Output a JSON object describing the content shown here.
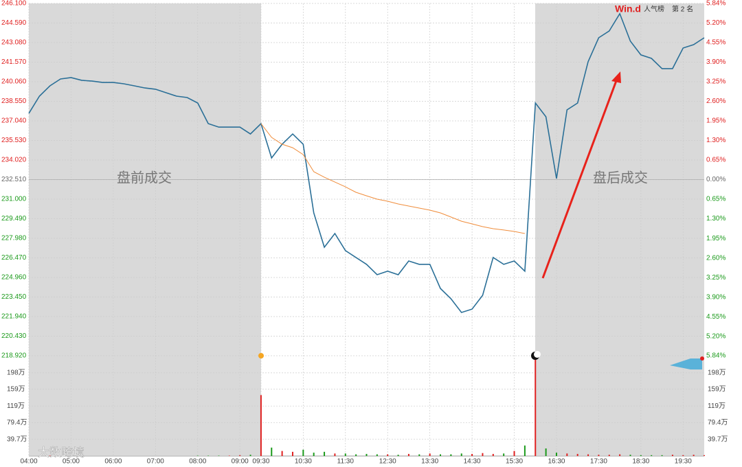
{
  "chart_data": {
    "type": "line",
    "categories": [
      "04:00",
      null,
      null,
      null,
      "05:00",
      null,
      null,
      null,
      "06:00",
      null,
      null,
      null,
      "07:00",
      null,
      null,
      null,
      "08:00",
      null,
      null,
      null,
      "09:00",
      null,
      "09:30",
      null,
      null,
      null,
      "10:30",
      null,
      null,
      null,
      "11:30",
      null,
      null,
      null,
      "12:30",
      null,
      null,
      null,
      "13:30",
      null,
      null,
      null,
      "14:30",
      null,
      null,
      null,
      "15:30",
      null,
      null,
      null,
      "16:30",
      null,
      null,
      null,
      "17:30",
      null,
      null,
      null,
      "18:30",
      null,
      null,
      null,
      "19:30",
      null,
      null
    ],
    "series": [
      {
        "color": "#2a6f97",
        "values": [
          237.62,
          238.95,
          239.74,
          240.27,
          240.38,
          240.17,
          240.11,
          240.0,
          240.0,
          239.9,
          239.74,
          239.58,
          239.48,
          239.21,
          238.95,
          238.84,
          238.42,
          236.83,
          236.56,
          236.56,
          236.56,
          236.03,
          236.83,
          234.18,
          235.24,
          236.03,
          235.24,
          229.94,
          227.29,
          228.35,
          227.03,
          226.5,
          225.97,
          225.17,
          225.44,
          225.17,
          226.23,
          225.97,
          225.97,
          224.11,
          223.32,
          222.26,
          222.52,
          223.58,
          226.5,
          225.97,
          226.23,
          225.44,
          238.42,
          237.36,
          232.59,
          237.89,
          238.42,
          241.6,
          243.45,
          243.98,
          245.31,
          243.19,
          242.13,
          241.86,
          241.07,
          241.07,
          242.66,
          242.92,
          243.45
        ]
      },
      {
        "color": "#f08c3a",
        "values": [
          null,
          null,
          null,
          null,
          null,
          null,
          null,
          null,
          null,
          null,
          null,
          null,
          null,
          null,
          null,
          null,
          null,
          null,
          null,
          null,
          null,
          null,
          236.83,
          235.77,
          235.24,
          234.97,
          234.44,
          233.12,
          232.69,
          232.32,
          231.95,
          231.53,
          231.26,
          231.0,
          230.84,
          230.63,
          230.47,
          230.31,
          230.15,
          229.94,
          229.62,
          229.3,
          229.09,
          228.88,
          228.72,
          228.62,
          228.51,
          228.35,
          null,
          null,
          null,
          null,
          null,
          null,
          null,
          null,
          null,
          null,
          null,
          null,
          null,
          null,
          null,
          null,
          null
        ]
      }
    ],
    "ylim": [
      218.92,
      246.1
    ],
    "yticks": [
      {
        "value": 246.1,
        "label": "246.100"
      },
      {
        "value": 244.59,
        "label": "244.590"
      },
      {
        "value": 243.08,
        "label": "243.080"
      },
      {
        "value": 241.57,
        "label": "241.570"
      },
      {
        "value": 240.06,
        "label": "240.060"
      },
      {
        "value": 238.55,
        "label": "238.550"
      },
      {
        "value": 237.04,
        "label": "237.040"
      },
      {
        "value": 235.53,
        "label": "235.530"
      },
      {
        "value": 234.02,
        "label": "234.020"
      },
      {
        "value": 232.51,
        "label": "232.510"
      },
      {
        "value": 231.0,
        "label": "231.000"
      },
      {
        "value": 229.49,
        "label": "229.490"
      },
      {
        "value": 227.98,
        "label": "227.980"
      },
      {
        "value": 226.47,
        "label": "226.470"
      },
      {
        "value": 224.96,
        "label": "224.960"
      },
      {
        "value": 223.45,
        "label": "223.450"
      },
      {
        "value": 221.94,
        "label": "221.940"
      },
      {
        "value": 220.43,
        "label": "220.430"
      },
      {
        "value": 218.92,
        "label": "218.920"
      }
    ],
    "y2lim": [
      -5.84,
      5.84
    ],
    "y2ticks": [
      {
        "value": 5.84,
        "label": "5.84%"
      },
      {
        "value": 5.2,
        "label": "5.20%"
      },
      {
        "value": 4.55,
        "label": "4.55%"
      },
      {
        "value": 3.9,
        "label": "3.90%"
      },
      {
        "value": 3.25,
        "label": "3.25%"
      },
      {
        "value": 2.6,
        "label": "2.60%"
      },
      {
        "value": 1.95,
        "label": "1.95%"
      },
      {
        "value": 1.3,
        "label": "1.30%"
      },
      {
        "value": 0.65,
        "label": "0.65%"
      },
      {
        "value": 0,
        "label": "0.00%"
      },
      {
        "value": -0.65,
        "label": "0.65%"
      },
      {
        "value": -1.3,
        "label": "1.30%"
      },
      {
        "value": -1.95,
        "label": "1.95%"
      },
      {
        "value": -2.6,
        "label": "2.60%"
      },
      {
        "value": -3.25,
        "label": "3.25%"
      },
      {
        "value": -3.9,
        "label": "3.90%"
      },
      {
        "value": -4.55,
        "label": "4.55%"
      },
      {
        "value": -5.2,
        "label": "5.20%"
      },
      {
        "value": -5.84,
        "label": "5.84%"
      }
    ],
    "up_color": "#e02020",
    "down_color": "#1a9a1a",
    "grid": true,
    "volume": {
      "values": [
        0,
        0,
        1,
        0,
        0,
        0,
        0,
        0,
        0,
        0,
        0,
        0,
        0,
        0,
        0,
        0,
        1,
        1,
        1,
        1,
        2,
        3,
        145,
        20,
        12,
        10,
        15,
        8,
        10,
        6,
        6,
        4,
        5,
        4,
        4,
        3,
        5,
        4,
        6,
        4,
        4,
        6,
        5,
        7,
        5,
        6,
        12,
        25,
        235,
        18,
        8,
        6,
        5,
        4,
        3,
        3,
        4,
        3,
        2,
        2,
        2,
        3,
        2,
        3,
        2
      ],
      "ylim": [
        0,
        237
      ],
      "yticks": [
        {
          "value": 198,
          "label": "198万"
        },
        {
          "value": 159,
          "label": "159万"
        },
        {
          "value": 119,
          "label": "119万"
        },
        {
          "value": 79.4,
          "label": "79.4万"
        },
        {
          "value": 39.7,
          "label": "39.7万"
        }
      ]
    },
    "annotations": {
      "premarket": "盘前成交",
      "afterhours": "盘后成交",
      "brand": "Win.d",
      "board": "人气榜",
      "rank": "第 2 名",
      "watermark": "大数跨境"
    }
  }
}
